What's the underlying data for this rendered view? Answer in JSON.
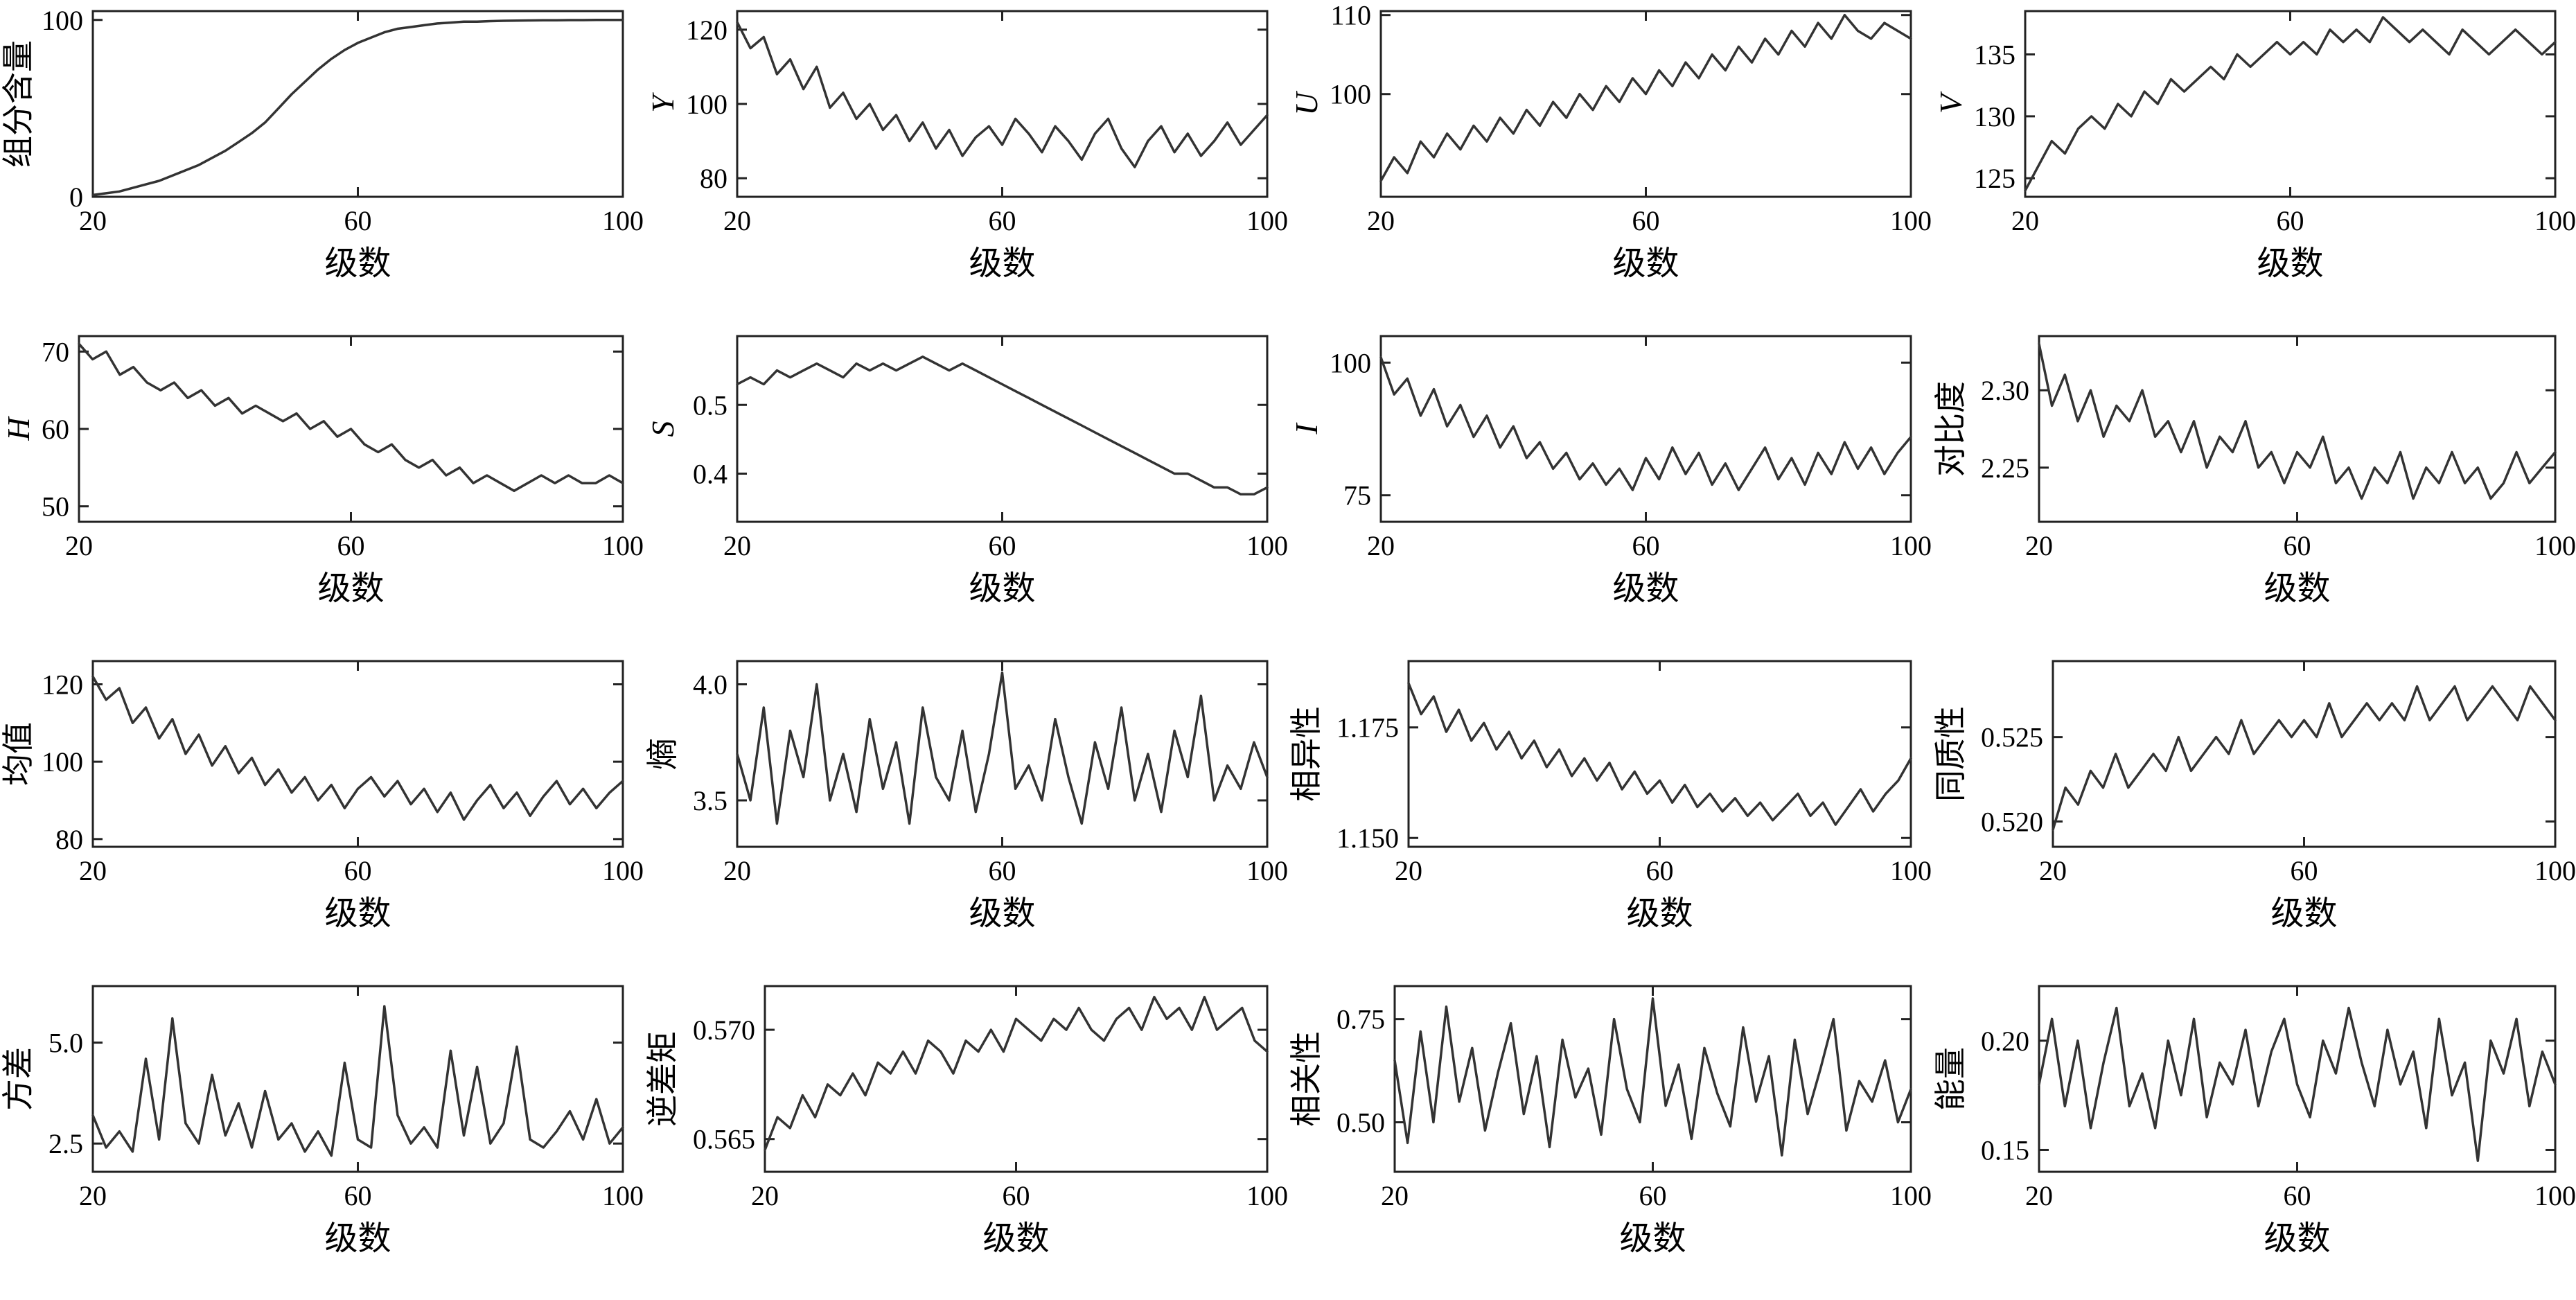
{
  "figure": {
    "background": "#ffffff",
    "line_color": "#333333",
    "axis_color": "#222222",
    "text_color": "#000000"
  },
  "chart_data": {
    "type": "line",
    "layout": "grid",
    "grid": {
      "rows": 4,
      "cols": 4
    },
    "xlabel": "级数",
    "x_range": [
      20,
      100
    ],
    "x_ticks": [
      20,
      60,
      100
    ],
    "x_tick_labels": [
      "20",
      "60",
      "100"
    ],
    "legend": "none",
    "gridlines": false,
    "charts": [
      {
        "name": "component-content",
        "ylabel": "组分含量",
        "ylabel_italic": false,
        "ylim": [
          0,
          105
        ],
        "y_ticks": [
          0,
          100
        ],
        "y_tick_labels": [
          "0",
          "100"
        ],
        "y": [
          1,
          2,
          3,
          5,
          7,
          9,
          12,
          15,
          18,
          22,
          26,
          31,
          36,
          42,
          50,
          58,
          65,
          72,
          78,
          83,
          87,
          90,
          93,
          95,
          96,
          97,
          98,
          98.5,
          99,
          99,
          99.3,
          99.5,
          99.6,
          99.7,
          99.8,
          99.8,
          99.9,
          99.9,
          100,
          100,
          100
        ]
      },
      {
        "name": "Y",
        "ylabel": "Y",
        "ylabel_italic": true,
        "ylim": [
          75,
          125
        ],
        "y_ticks": [
          80,
          100,
          120
        ],
        "y_tick_labels": [
          "80",
          "100",
          "120"
        ],
        "y": [
          122,
          115,
          118,
          108,
          112,
          104,
          110,
          99,
          103,
          96,
          100,
          93,
          97,
          90,
          95,
          88,
          93,
          86,
          91,
          94,
          89,
          96,
          92,
          87,
          94,
          90,
          85,
          92,
          96,
          88,
          83,
          90,
          94,
          87,
          92,
          86,
          90,
          95,
          89,
          93,
          97
        ]
      },
      {
        "name": "U",
        "ylabel": "U",
        "ylabel_italic": true,
        "ylim": [
          87,
          110.5
        ],
        "y_ticks": [
          100,
          110
        ],
        "y_tick_labels": [
          "100",
          "110"
        ],
        "y": [
          89,
          92,
          90,
          94,
          92,
          95,
          93,
          96,
          94,
          97,
          95,
          98,
          96,
          99,
          97,
          100,
          98,
          101,
          99,
          102,
          100,
          103,
          101,
          104,
          102,
          105,
          103,
          106,
          104,
          107,
          105,
          108,
          106,
          109,
          107,
          110,
          108,
          107,
          109,
          108,
          107
        ]
      },
      {
        "name": "V",
        "ylabel": "V",
        "ylabel_italic": true,
        "ylim": [
          123.5,
          138.5
        ],
        "y_ticks": [
          125,
          130,
          135
        ],
        "y_tick_labels": [
          "125",
          "130",
          "135"
        ],
        "y": [
          124,
          126,
          128,
          127,
          129,
          130,
          129,
          131,
          130,
          132,
          131,
          133,
          132,
          133,
          134,
          133,
          135,
          134,
          135,
          136,
          135,
          136,
          135,
          137,
          136,
          137,
          136,
          138,
          137,
          136,
          137,
          136,
          135,
          137,
          136,
          135,
          136,
          137,
          136,
          135,
          136
        ]
      },
      {
        "name": "H",
        "ylabel": "H",
        "ylabel_italic": true,
        "ylim": [
          48,
          72
        ],
        "y_ticks": [
          50,
          60,
          70
        ],
        "y_tick_labels": [
          "50",
          "60",
          "70"
        ],
        "y": [
          71,
          69,
          70,
          67,
          68,
          66,
          65,
          66,
          64,
          65,
          63,
          64,
          62,
          63,
          62,
          61,
          62,
          60,
          61,
          59,
          60,
          58,
          57,
          58,
          56,
          55,
          56,
          54,
          55,
          53,
          54,
          53,
          52,
          53,
          54,
          53,
          54,
          53,
          53,
          54,
          53
        ]
      },
      {
        "name": "S",
        "ylabel": "S",
        "ylabel_italic": true,
        "ylim": [
          0.33,
          0.6
        ],
        "y_ticks": [
          0.4,
          0.5
        ],
        "y_tick_labels": [
          "0.4",
          "0.5"
        ],
        "y": [
          0.53,
          0.54,
          0.53,
          0.55,
          0.54,
          0.55,
          0.56,
          0.55,
          0.54,
          0.56,
          0.55,
          0.56,
          0.55,
          0.56,
          0.57,
          0.56,
          0.55,
          0.56,
          0.55,
          0.54,
          0.53,
          0.52,
          0.51,
          0.5,
          0.49,
          0.48,
          0.47,
          0.46,
          0.45,
          0.44,
          0.43,
          0.42,
          0.41,
          0.4,
          0.4,
          0.39,
          0.38,
          0.38,
          0.37,
          0.37,
          0.38
        ]
      },
      {
        "name": "I",
        "ylabel": "I",
        "ylabel_italic": true,
        "ylim": [
          70,
          105
        ],
        "y_ticks": [
          75,
          100
        ],
        "y_tick_labels": [
          "75",
          "100"
        ],
        "y": [
          101,
          94,
          97,
          90,
          95,
          88,
          92,
          86,
          90,
          84,
          88,
          82,
          85,
          80,
          83,
          78,
          81,
          77,
          80,
          76,
          82,
          78,
          84,
          79,
          83,
          77,
          81,
          76,
          80,
          84,
          78,
          82,
          77,
          83,
          79,
          85,
          80,
          84,
          79,
          83,
          86
        ]
      },
      {
        "name": "contrast",
        "ylabel": "对比度",
        "ylabel_italic": false,
        "ylim": [
          2.215,
          2.335
        ],
        "y_ticks": [
          2.25,
          2.3
        ],
        "y_tick_labels": [
          "2.25",
          "2.30"
        ],
        "y": [
          2.33,
          2.29,
          2.31,
          2.28,
          2.3,
          2.27,
          2.29,
          2.28,
          2.3,
          2.27,
          2.28,
          2.26,
          2.28,
          2.25,
          2.27,
          2.26,
          2.28,
          2.25,
          2.26,
          2.24,
          2.26,
          2.25,
          2.27,
          2.24,
          2.25,
          2.23,
          2.25,
          2.24,
          2.26,
          2.23,
          2.25,
          2.24,
          2.26,
          2.24,
          2.25,
          2.23,
          2.24,
          2.26,
          2.24,
          2.25,
          2.26
        ]
      },
      {
        "name": "mean",
        "ylabel": "均值",
        "ylabel_italic": false,
        "ylim": [
          78,
          126
        ],
        "y_ticks": [
          80,
          100,
          120
        ],
        "y_tick_labels": [
          "80",
          "100",
          "120"
        ],
        "y": [
          122,
          116,
          119,
          110,
          114,
          106,
          111,
          102,
          107,
          99,
          104,
          97,
          101,
          94,
          98,
          92,
          96,
          90,
          94,
          88,
          93,
          96,
          91,
          95,
          89,
          93,
          87,
          92,
          85,
          90,
          94,
          88,
          92,
          86,
          91,
          95,
          89,
          93,
          88,
          92,
          95
        ]
      },
      {
        "name": "entropy",
        "ylabel": "熵",
        "ylabel_italic": false,
        "ylim": [
          3.3,
          4.1
        ],
        "y_ticks": [
          3.5,
          4.0
        ],
        "y_tick_labels": [
          "3.5",
          "4.0"
        ],
        "y": [
          3.7,
          3.5,
          3.9,
          3.4,
          3.8,
          3.6,
          4.0,
          3.5,
          3.7,
          3.45,
          3.85,
          3.55,
          3.75,
          3.4,
          3.9,
          3.6,
          3.5,
          3.8,
          3.45,
          3.7,
          4.05,
          3.55,
          3.65,
          3.5,
          3.85,
          3.6,
          3.4,
          3.75,
          3.55,
          3.9,
          3.5,
          3.7,
          3.45,
          3.8,
          3.6,
          3.95,
          3.5,
          3.65,
          3.55,
          3.75,
          3.6
        ]
      },
      {
        "name": "dissimilarity",
        "ylabel": "相异性",
        "ylabel_italic": false,
        "ylim": [
          1.148,
          1.19
        ],
        "y_ticks": [
          1.15,
          1.175
        ],
        "y_tick_labels": [
          "1.150",
          "1.175"
        ],
        "y": [
          1.185,
          1.178,
          1.182,
          1.174,
          1.179,
          1.172,
          1.176,
          1.17,
          1.174,
          1.168,
          1.172,
          1.166,
          1.17,
          1.164,
          1.168,
          1.163,
          1.167,
          1.161,
          1.165,
          1.16,
          1.163,
          1.158,
          1.162,
          1.157,
          1.16,
          1.156,
          1.159,
          1.155,
          1.158,
          1.154,
          1.157,
          1.16,
          1.155,
          1.158,
          1.153,
          1.157,
          1.161,
          1.156,
          1.16,
          1.163,
          1.168
        ]
      },
      {
        "name": "homogeneity",
        "ylabel": "同质性",
        "ylabel_italic": false,
        "ylim": [
          0.5185,
          0.5295
        ],
        "y_ticks": [
          0.52,
          0.525
        ],
        "y_tick_labels": [
          "0.520",
          "0.525"
        ],
        "y": [
          0.5195,
          0.522,
          0.521,
          0.523,
          0.522,
          0.524,
          0.522,
          0.523,
          0.524,
          0.523,
          0.525,
          0.523,
          0.524,
          0.525,
          0.524,
          0.526,
          0.524,
          0.525,
          0.526,
          0.525,
          0.526,
          0.525,
          0.527,
          0.525,
          0.526,
          0.527,
          0.526,
          0.527,
          0.526,
          0.528,
          0.526,
          0.527,
          0.528,
          0.526,
          0.527,
          0.528,
          0.527,
          0.526,
          0.528,
          0.527,
          0.526
        ]
      },
      {
        "name": "variance",
        "ylabel": "方差",
        "ylabel_italic": false,
        "ylim": [
          1.8,
          6.4
        ],
        "y_ticks": [
          2.5,
          5.0
        ],
        "y_tick_labels": [
          "2.5",
          "5.0"
        ],
        "y": [
          3.2,
          2.4,
          2.8,
          2.3,
          4.6,
          2.6,
          5.6,
          3.0,
          2.5,
          4.2,
          2.7,
          3.5,
          2.4,
          3.8,
          2.6,
          3.0,
          2.3,
          2.8,
          2.2,
          4.5,
          2.6,
          2.4,
          5.9,
          3.2,
          2.5,
          2.9,
          2.4,
          4.8,
          2.7,
          4.4,
          2.5,
          3.0,
          4.9,
          2.6,
          2.4,
          2.8,
          3.3,
          2.6,
          3.6,
          2.5,
          2.9
        ]
      },
      {
        "name": "inverse-difference-moment",
        "ylabel": "逆差矩",
        "ylabel_italic": false,
        "ylim": [
          0.5635,
          0.572
        ],
        "y_ticks": [
          0.565,
          0.57
        ],
        "y_tick_labels": [
          "0.565",
          "0.570"
        ],
        "y": [
          0.5645,
          0.566,
          0.5655,
          0.567,
          0.566,
          0.5675,
          0.567,
          0.568,
          0.567,
          0.5685,
          0.568,
          0.569,
          0.568,
          0.5695,
          0.569,
          0.568,
          0.5695,
          0.569,
          0.57,
          0.569,
          0.5705,
          0.57,
          0.5695,
          0.5705,
          0.57,
          0.571,
          0.57,
          0.5695,
          0.5705,
          0.571,
          0.57,
          0.5715,
          0.5705,
          0.571,
          0.57,
          0.5715,
          0.57,
          0.5705,
          0.571,
          0.5695,
          0.569
        ]
      },
      {
        "name": "correlation",
        "ylabel": "相关性",
        "ylabel_italic": false,
        "ylim": [
          0.38,
          0.83
        ],
        "y_ticks": [
          0.5,
          0.75
        ],
        "y_tick_labels": [
          "0.50",
          "0.75"
        ],
        "y": [
          0.65,
          0.45,
          0.72,
          0.5,
          0.78,
          0.55,
          0.68,
          0.48,
          0.62,
          0.74,
          0.52,
          0.66,
          0.44,
          0.7,
          0.56,
          0.63,
          0.47,
          0.75,
          0.58,
          0.5,
          0.8,
          0.54,
          0.64,
          0.46,
          0.68,
          0.57,
          0.49,
          0.73,
          0.55,
          0.66,
          0.42,
          0.7,
          0.52,
          0.63,
          0.75,
          0.48,
          0.6,
          0.55,
          0.65,
          0.5,
          0.58
        ]
      },
      {
        "name": "energy",
        "ylabel": "能量",
        "ylabel_italic": false,
        "ylim": [
          0.14,
          0.225
        ],
        "y_ticks": [
          0.15,
          0.2
        ],
        "y_tick_labels": [
          "0.15",
          "0.20"
        ],
        "y": [
          0.18,
          0.21,
          0.17,
          0.2,
          0.16,
          0.19,
          0.215,
          0.17,
          0.185,
          0.16,
          0.2,
          0.175,
          0.21,
          0.165,
          0.19,
          0.18,
          0.205,
          0.17,
          0.195,
          0.21,
          0.18,
          0.165,
          0.2,
          0.185,
          0.215,
          0.19,
          0.17,
          0.205,
          0.18,
          0.195,
          0.16,
          0.21,
          0.175,
          0.19,
          0.145,
          0.2,
          0.185,
          0.21,
          0.17,
          0.195,
          0.18
        ]
      }
    ]
  }
}
